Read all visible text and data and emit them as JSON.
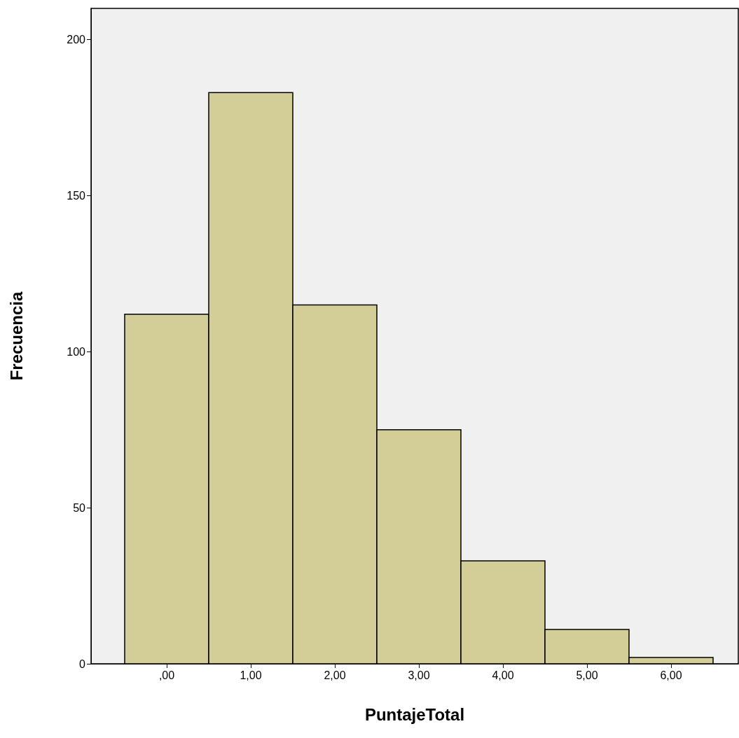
{
  "chart_data": {
    "type": "histogram",
    "xlabel": "PuntajeTotal",
    "ylabel": "Frecuencia",
    "bins": [
      -0.5,
      0.5,
      1.5,
      2.5,
      3.5,
      4.5,
      5.5,
      6.5
    ],
    "values": [
      112,
      183,
      115,
      75,
      33,
      11,
      2
    ],
    "color": "#d3ce97",
    "xlim": [
      -0.9,
      6.8
    ],
    "xticks": [
      {
        "value": 0,
        "label": ",00"
      },
      {
        "value": 1,
        "label": "1,00"
      },
      {
        "value": 2,
        "label": "2,00"
      },
      {
        "value": 3,
        "label": "3,00"
      },
      {
        "value": 4,
        "label": "4,00"
      },
      {
        "value": 5,
        "label": "5,00"
      },
      {
        "value": 6,
        "label": "6,00"
      }
    ],
    "ylim": [
      0,
      210
    ],
    "yticks": [
      0,
      50,
      100,
      150,
      200
    ]
  }
}
